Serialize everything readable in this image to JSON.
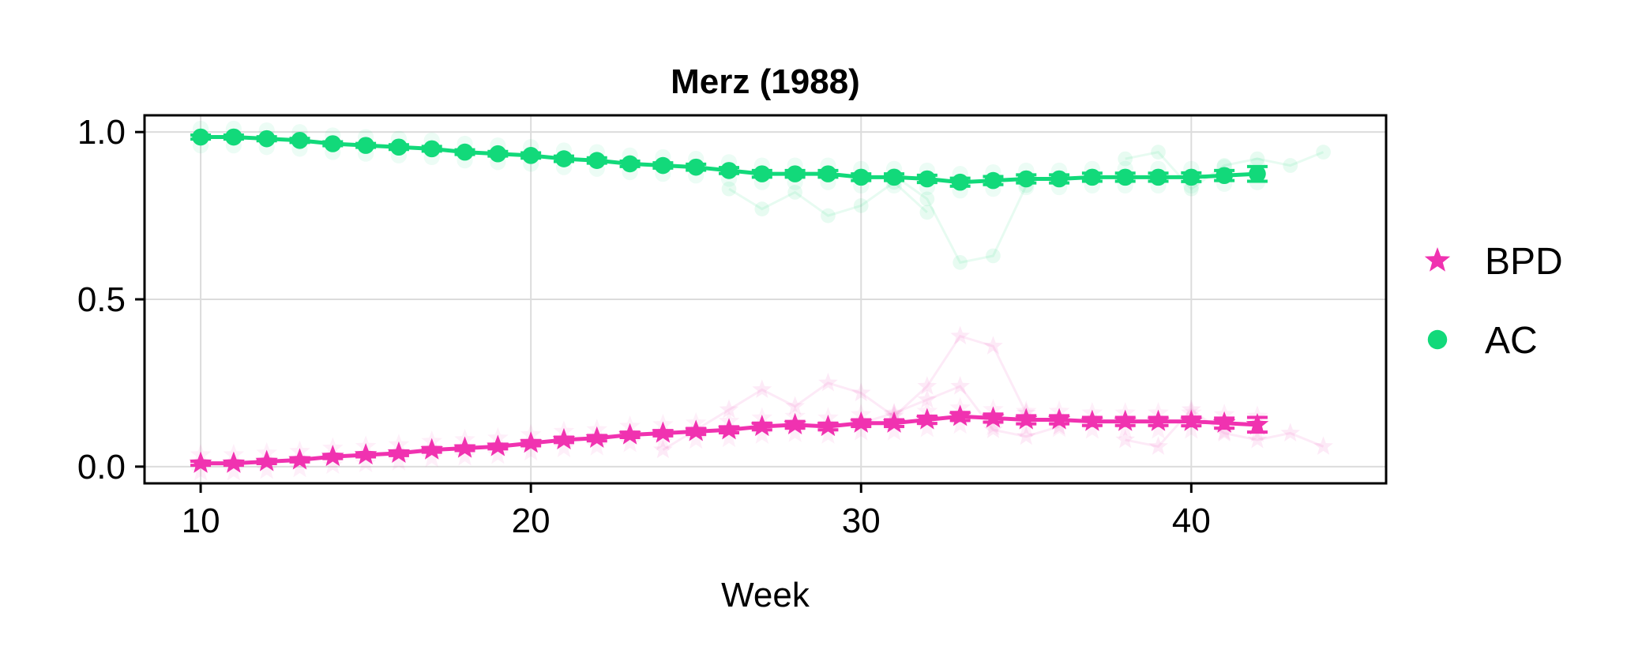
{
  "chart_data": {
    "type": "line",
    "title": "Merz (1988)",
    "xlabel": "Week",
    "ylabel": "",
    "xlim": [
      8.3,
      45.9
    ],
    "ylim": [
      -0.05,
      1.05
    ],
    "xticks": [
      10,
      20,
      30,
      40
    ],
    "xtick_labels": [
      "10",
      "20",
      "30",
      "40"
    ],
    "yticks": [
      0.0,
      0.5,
      1.0
    ],
    "ytick_labels": [
      "0.0",
      "0.5",
      "1.0"
    ],
    "grid": true,
    "legend_placement": "right",
    "x": [
      10,
      11,
      12,
      13,
      14,
      15,
      16,
      17,
      18,
      19,
      20,
      21,
      22,
      23,
      24,
      25,
      26,
      27,
      28,
      29,
      30,
      31,
      32,
      33,
      34,
      35,
      36,
      37,
      38,
      39,
      40,
      41,
      42
    ],
    "series": [
      {
        "name": "BPD",
        "marker": "star",
        "color": "#F032B0",
        "values": [
          0.01,
          0.01,
          0.015,
          0.02,
          0.03,
          0.035,
          0.04,
          0.05,
          0.055,
          0.06,
          0.07,
          0.08,
          0.085,
          0.095,
          0.1,
          0.105,
          0.11,
          0.12,
          0.125,
          0.12,
          0.13,
          0.13,
          0.14,
          0.15,
          0.145,
          0.14,
          0.14,
          0.135,
          0.135,
          0.135,
          0.135,
          0.13,
          0.125
        ],
        "error": [
          0.006,
          0.006,
          0.006,
          0.006,
          0.006,
          0.006,
          0.007,
          0.007,
          0.007,
          0.007,
          0.008,
          0.008,
          0.008,
          0.008,
          0.008,
          0.009,
          0.009,
          0.01,
          0.01,
          0.01,
          0.01,
          0.01,
          0.011,
          0.012,
          0.012,
          0.012,
          0.012,
          0.012,
          0.012,
          0.012,
          0.013,
          0.015,
          0.022
        ]
      },
      {
        "name": "AC",
        "marker": "circle",
        "color": "#12D97A",
        "values": [
          0.985,
          0.985,
          0.98,
          0.975,
          0.965,
          0.96,
          0.955,
          0.95,
          0.94,
          0.935,
          0.93,
          0.92,
          0.915,
          0.905,
          0.9,
          0.895,
          0.885,
          0.875,
          0.875,
          0.875,
          0.865,
          0.865,
          0.86,
          0.85,
          0.855,
          0.86,
          0.86,
          0.865,
          0.865,
          0.865,
          0.865,
          0.87,
          0.875
        ],
        "error": [
          0.006,
          0.006,
          0.006,
          0.006,
          0.006,
          0.006,
          0.007,
          0.007,
          0.007,
          0.007,
          0.008,
          0.008,
          0.008,
          0.008,
          0.008,
          0.009,
          0.009,
          0.01,
          0.01,
          0.01,
          0.01,
          0.01,
          0.011,
          0.012,
          0.012,
          0.012,
          0.012,
          0.012,
          0.012,
          0.012,
          0.013,
          0.015,
          0.022
        ]
      }
    ],
    "background_traces": {
      "BPD": [
        {
          "x": [
            24,
            26,
            27,
            28,
            29,
            30,
            31,
            32,
            33,
            34,
            35
          ],
          "y": [
            0.05,
            0.17,
            0.23,
            0.18,
            0.25,
            0.22,
            0.15,
            0.24,
            0.39,
            0.36,
            0.16
          ]
        },
        {
          "x": [
            30,
            31,
            32,
            33,
            34,
            35,
            36
          ],
          "y": [
            0.13,
            0.16,
            0.2,
            0.24,
            0.11,
            0.09,
            0.12
          ]
        },
        {
          "x": [
            38,
            39,
            40,
            41,
            42,
            43,
            44
          ],
          "y": [
            0.08,
            0.06,
            0.17,
            0.1,
            0.08,
            0.1,
            0.06
          ]
        }
      ],
      "AC": [
        {
          "x": [
            26,
            27,
            28,
            29,
            30,
            31,
            32
          ],
          "y": [
            0.83,
            0.77,
            0.82,
            0.75,
            0.78,
            0.85,
            0.76
          ]
        },
        {
          "x": [
            31,
            32,
            33,
            34,
            35
          ],
          "y": [
            0.87,
            0.8,
            0.61,
            0.63,
            0.84
          ]
        },
        {
          "x": [
            38,
            39,
            40,
            41,
            42,
            43,
            44
          ],
          "y": [
            0.92,
            0.94,
            0.83,
            0.9,
            0.92,
            0.9,
            0.94
          ]
        }
      ]
    }
  }
}
